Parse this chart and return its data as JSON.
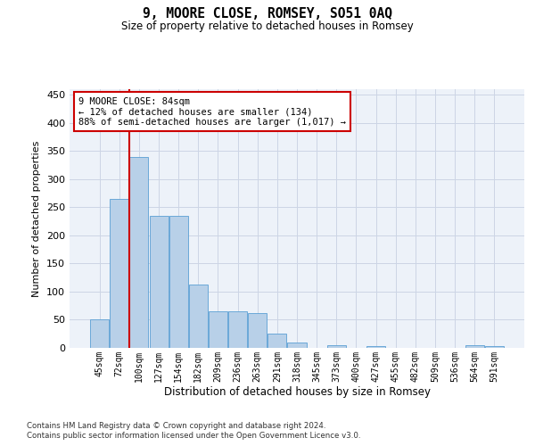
{
  "title": "9, MOORE CLOSE, ROMSEY, SO51 0AQ",
  "subtitle": "Size of property relative to detached houses in Romsey",
  "xlabel": "Distribution of detached houses by size in Romsey",
  "ylabel": "Number of detached properties",
  "categories": [
    "45sqm",
    "72sqm",
    "100sqm",
    "127sqm",
    "154sqm",
    "182sqm",
    "209sqm",
    "236sqm",
    "263sqm",
    "291sqm",
    "318sqm",
    "345sqm",
    "373sqm",
    "400sqm",
    "427sqm",
    "455sqm",
    "482sqm",
    "509sqm",
    "536sqm",
    "564sqm",
    "591sqm"
  ],
  "values": [
    50,
    265,
    340,
    235,
    235,
    113,
    65,
    65,
    62,
    25,
    9,
    0,
    4,
    0,
    3,
    0,
    0,
    0,
    0,
    4,
    3
  ],
  "bar_color": "#b8d0e8",
  "bar_edge_color": "#5a9fd4",
  "vline_color": "#cc0000",
  "annotation_text": "9 MOORE CLOSE: 84sqm\n← 12% of detached houses are smaller (134)\n88% of semi-detached houses are larger (1,017) →",
  "annotation_box_color": "#ffffff",
  "annotation_box_edge": "#cc0000",
  "grid_color": "#ccd5e5",
  "bg_color": "#edf2f9",
  "ylim": [
    0,
    460
  ],
  "yticks": [
    0,
    50,
    100,
    150,
    200,
    250,
    300,
    350,
    400,
    450
  ],
  "footer1": "Contains HM Land Registry data © Crown copyright and database right 2024.",
  "footer2": "Contains public sector information licensed under the Open Government Licence v3.0."
}
